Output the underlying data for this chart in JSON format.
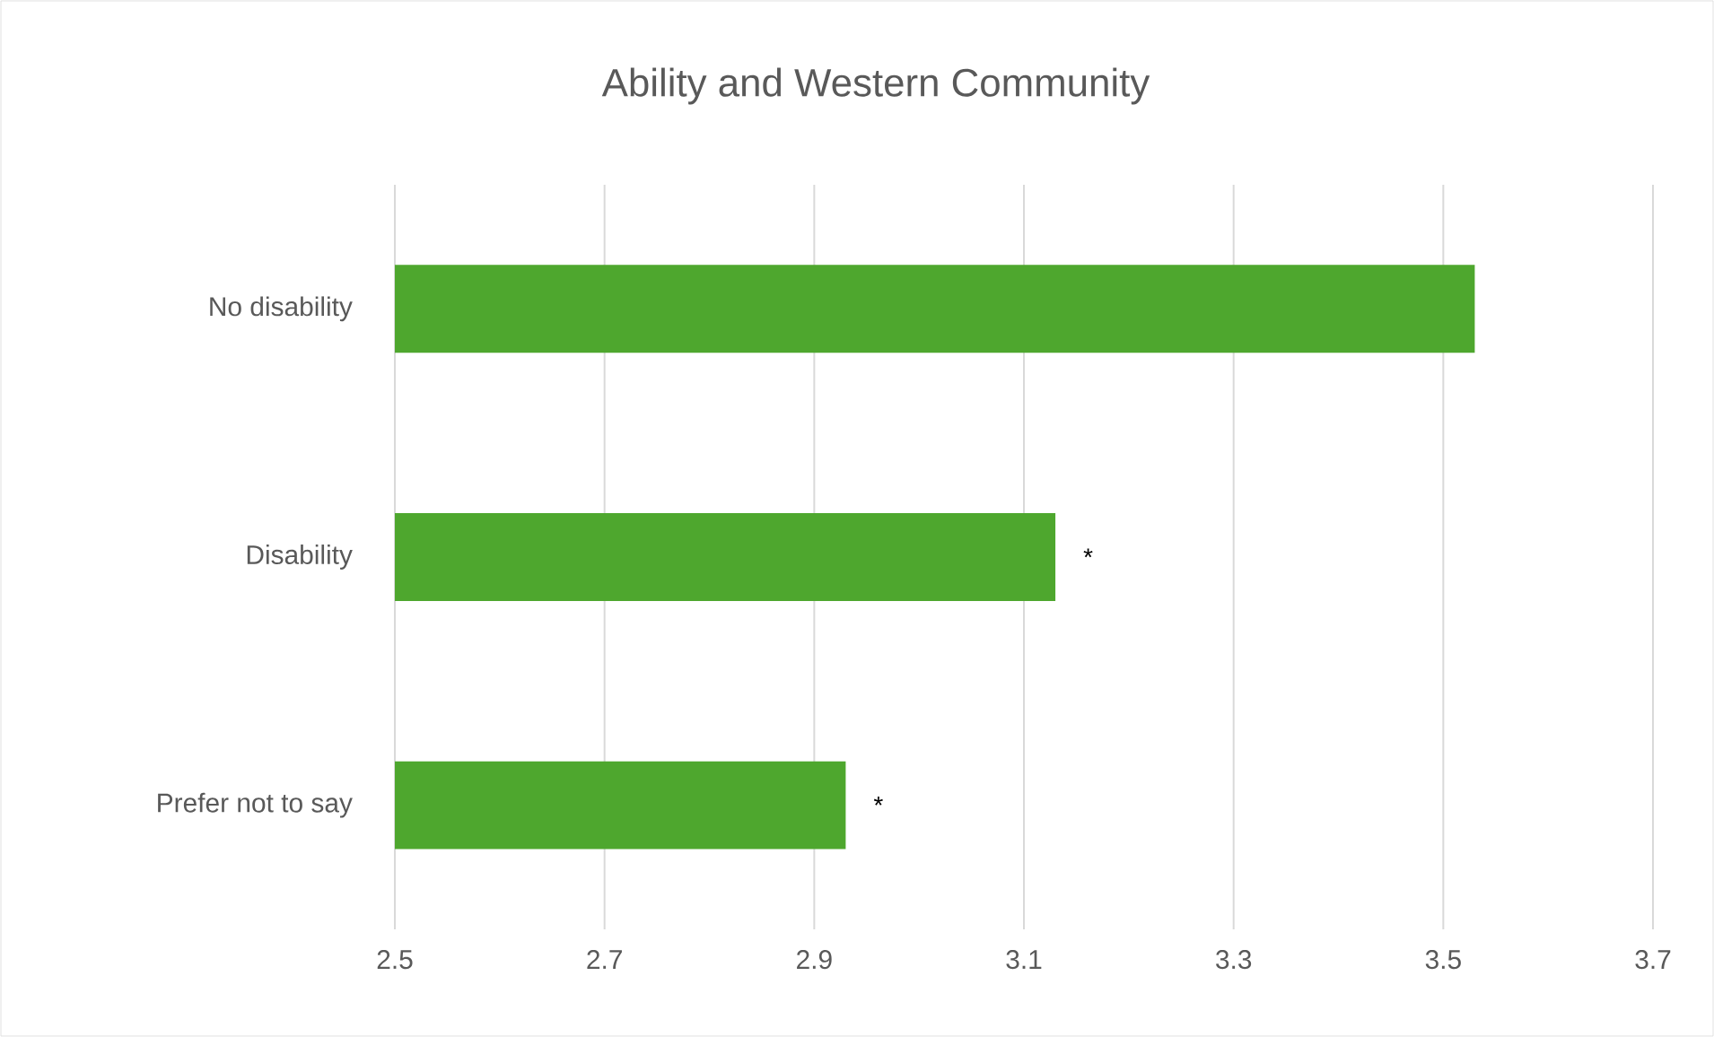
{
  "chart_data": {
    "type": "bar",
    "orientation": "horizontal",
    "title": "Ability and Western Community",
    "categories": [
      "No disability",
      "Disability",
      "Prefer not to say"
    ],
    "values": [
      3.53,
      3.13,
      2.93
    ],
    "color": "#4ea72e",
    "xlim": [
      2.5,
      3.7
    ],
    "xticks": [
      2.5,
      2.7,
      2.9,
      3.1,
      3.3,
      3.5,
      3.7
    ],
    "grid": "x",
    "annotations": [
      "*",
      "*"
    ]
  }
}
